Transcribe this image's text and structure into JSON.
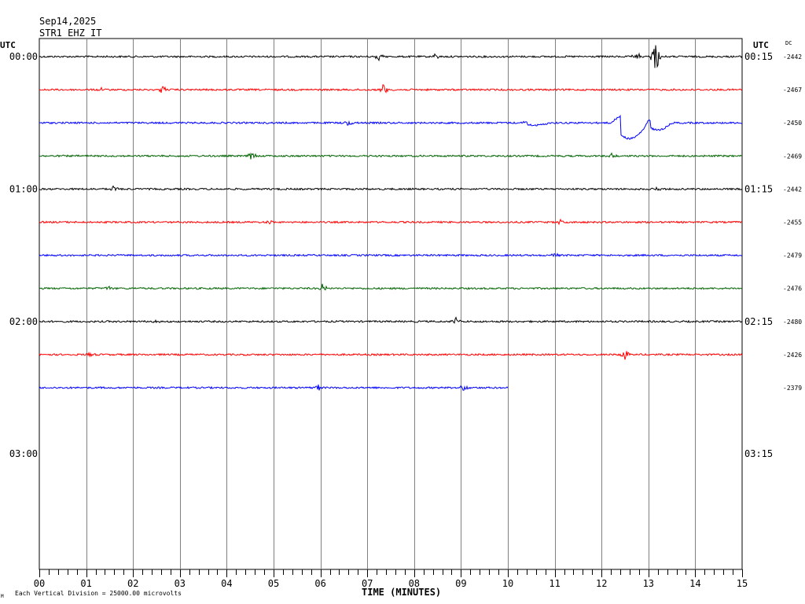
{
  "header": {
    "date": "Sep14,2025",
    "station": "STR1 EHZ IT"
  },
  "left_label": "UTC",
  "right_label": "UTC",
  "dc_label": "DC",
  "footer": {
    "note": "Each Vertical Division = 25000.00 microvolts",
    "corner_mark": "M"
  },
  "chart_data": {
    "type": "line",
    "xlabel": "TIME (MINUTES)",
    "xlim": [
      0,
      15
    ],
    "x_ticks": [
      "00",
      "01",
      "02",
      "03",
      "04",
      "05",
      "06",
      "07",
      "08",
      "09",
      "10",
      "11",
      "12",
      "13",
      "14",
      "15"
    ],
    "left_time_labels": [
      "00:00",
      "01:00",
      "02:00",
      "03:00"
    ],
    "right_time_labels": [
      "00:15",
      "01:15",
      "02:15",
      "03:15"
    ],
    "rows_per_hour": 4,
    "total_rows": 16,
    "traces": [
      {
        "row": 0,
        "color": "#000000",
        "dc": "-2442",
        "end_min": 15,
        "events": [
          {
            "t": 13.15,
            "amp": 22
          },
          {
            "t": 12.75,
            "amp": 5
          },
          {
            "t": 7.25,
            "amp": 4
          },
          {
            "t": 8.45,
            "amp": 4
          }
        ]
      },
      {
        "row": 1,
        "color": "#ff0000",
        "dc": "-2467",
        "end_min": 15,
        "events": [
          {
            "t": 2.65,
            "amp": 8
          },
          {
            "t": 7.35,
            "amp": 7
          },
          {
            "t": 1.3,
            "amp": 3
          }
        ]
      },
      {
        "row": 2,
        "color": "#0000ff",
        "dc": "-2450",
        "end_min": 15,
        "events": [
          {
            "t": 6.6,
            "amp": 4
          }
        ],
        "waves": [
          {
            "t0": 10.25,
            "t1": 10.9,
            "amp": -3
          },
          {
            "t0": 12.2,
            "t1": 13.0,
            "amp": -20
          },
          {
            "t0": 12.9,
            "t1": 13.5,
            "amp": -9
          }
        ]
      },
      {
        "row": 3,
        "color": "#006400",
        "dc": "-2469",
        "end_min": 15,
        "events": [
          {
            "t": 4.55,
            "amp": 5
          },
          {
            "t": 12.25,
            "amp": 4
          }
        ]
      },
      {
        "row": 4,
        "color": "#000000",
        "dc": "-2442",
        "end_min": 15,
        "events": [
          {
            "t": 1.6,
            "amp": 6
          },
          {
            "t": 13.2,
            "amp": 4
          }
        ]
      },
      {
        "row": 5,
        "color": "#ff0000",
        "dc": "-2455",
        "end_min": 15,
        "events": [
          {
            "t": 4.9,
            "amp": 3
          },
          {
            "t": 11.1,
            "amp": 3
          }
        ]
      },
      {
        "row": 6,
        "color": "#0000ff",
        "dc": "-2479",
        "end_min": 15,
        "events": [
          {
            "t": 11.0,
            "amp": 3
          }
        ]
      },
      {
        "row": 7,
        "color": "#006400",
        "dc": "-2476",
        "end_min": 15,
        "events": [
          {
            "t": 6.05,
            "amp": 6
          },
          {
            "t": 1.5,
            "amp": 3
          }
        ]
      },
      {
        "row": 8,
        "color": "#000000",
        "dc": "-2480",
        "end_min": 15,
        "events": [
          {
            "t": 8.9,
            "amp": 5
          },
          {
            "t": 2.5,
            "amp": 3
          }
        ]
      },
      {
        "row": 9,
        "color": "#ff0000",
        "dc": "-2426",
        "end_min": 15,
        "events": [
          {
            "t": 12.5,
            "amp": 6
          },
          {
            "t": 1.1,
            "amp": 4
          }
        ]
      },
      {
        "row": 10,
        "color": "#0000ff",
        "dc": "-2379",
        "end_min": 10,
        "events": [
          {
            "t": 9.05,
            "amp": 6
          },
          {
            "t": 5.95,
            "amp": 4
          }
        ]
      }
    ]
  }
}
